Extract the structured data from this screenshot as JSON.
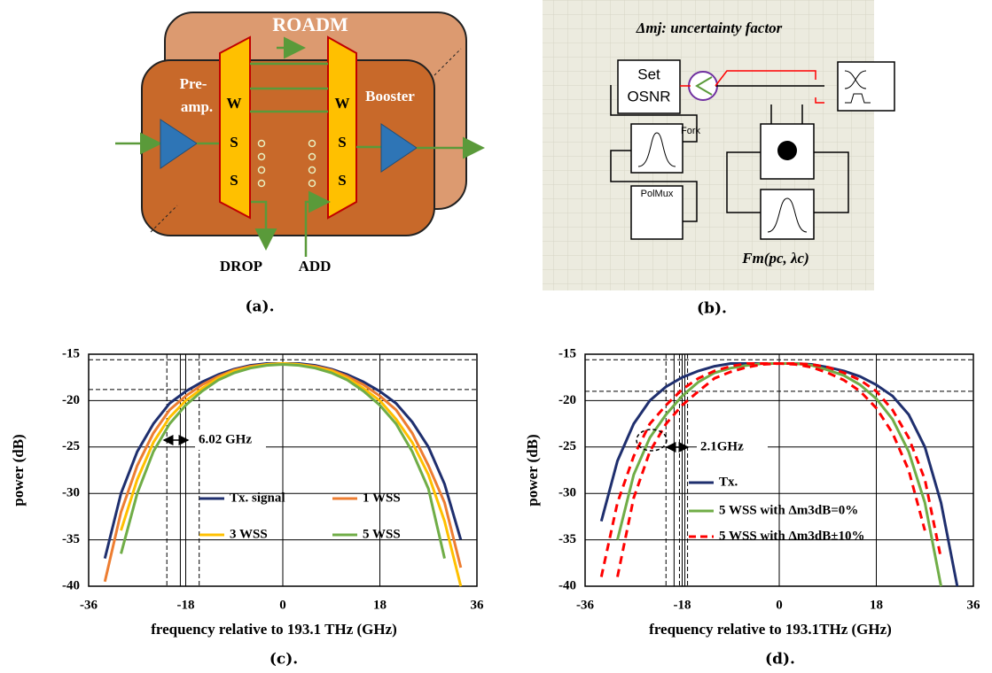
{
  "diagram_a": {
    "title": "ROADM",
    "preamp": [
      "Pre-",
      "amp."
    ],
    "booster": "Booster",
    "wss_left": [
      "W",
      "S",
      "S"
    ],
    "wss_right": [
      "W",
      "S",
      "S"
    ],
    "drop": "DROP",
    "add": "ADD",
    "caption": "(a)."
  },
  "diagram_b": {
    "title": "Δmj: uncertainty factor",
    "osnr": [
      "Set",
      "OSNR"
    ],
    "fork": "Fork",
    "polmux": "PolMux",
    "function": "Fm(pc, λc)",
    "caption": "(b)."
  },
  "chart_data": [
    {
      "type": "line",
      "caption": "(c).",
      "xlabel": "frequency relative to 193.1 THz (GHz)",
      "ylabel": "power (dB)",
      "annotation": "6.02 GHz",
      "xlim": [
        -36,
        36
      ],
      "xticks": [
        -36,
        -18,
        0,
        18,
        36
      ],
      "ylim": [
        -40,
        -15
      ],
      "yticks": [
        -15,
        -20,
        -25,
        -30,
        -35,
        -40
      ],
      "grid": true,
      "ref_hlines": [
        -15.6,
        -18.8
      ],
      "ref_vlines_dashed": [
        -21.5,
        -15.5
      ],
      "ref_vlines_solid": [
        -19,
        -18
      ],
      "x": [
        -36,
        -33,
        -30,
        -27,
        -24,
        -21,
        -18,
        -15,
        -12,
        -9,
        -6,
        -3,
        0,
        3,
        6,
        9,
        12,
        15,
        18,
        21,
        24,
        27,
        30,
        33,
        36
      ],
      "series": [
        {
          "name": "Tx. signal",
          "color": "#1f2f6e",
          "values": [
            null,
            -37,
            -30,
            -25.5,
            -22.5,
            -20.3,
            -19,
            -18,
            -17.2,
            -16.6,
            -16.2,
            -16,
            -16,
            -16,
            -16.2,
            -16.6,
            -17.2,
            -18,
            -19,
            -20.3,
            -22.3,
            -25,
            -29,
            -35,
            null
          ]
        },
        {
          "name": "1 WSS",
          "color": "#ed7d31",
          "values": [
            null,
            -39.5,
            -32,
            -27,
            -23.5,
            -21,
            -19.5,
            -18.3,
            -17.4,
            -16.7,
            -16.3,
            -16.1,
            -16,
            -16.1,
            -16.3,
            -16.7,
            -17.4,
            -18.3,
            -19.5,
            -21,
            -23.5,
            -27,
            -31,
            -38,
            null
          ]
        },
        {
          "name": "3 WSS",
          "color": "#ffc000",
          "values": [
            null,
            null,
            -34,
            -28.5,
            -24.5,
            -21.8,
            -20,
            -18.7,
            -17.6,
            -16.8,
            -16.4,
            -16.1,
            -16,
            -16.1,
            -16.4,
            -16.8,
            -17.6,
            -18.7,
            -20,
            -22,
            -24.5,
            -28,
            -33,
            -40,
            null
          ]
        },
        {
          "name": "5 WSS",
          "color": "#70ad47",
          "values": [
            null,
            null,
            -36.5,
            -30,
            -25.5,
            -22.5,
            -20.5,
            -19,
            -17.8,
            -17,
            -16.5,
            -16.2,
            -16.1,
            -16.2,
            -16.5,
            -17,
            -17.8,
            -19,
            -20.5,
            -22.5,
            -25.5,
            -29.5,
            -37,
            null,
            null
          ]
        }
      ]
    },
    {
      "type": "line",
      "caption": "(d).",
      "xlabel": "frequency relative to 193.1THz (GHz)",
      "ylabel": "power (dB)",
      "annotation": "2.1GHz",
      "xlim": [
        -36,
        36
      ],
      "xticks": [
        -36,
        -18,
        0,
        18,
        36
      ],
      "ylim": [
        -40,
        -15
      ],
      "yticks": [
        -15,
        -20,
        -25,
        -30,
        -35,
        -40
      ],
      "grid": true,
      "ref_hlines": [
        -15.6,
        -19
      ],
      "ref_vlines_dashed": [
        -21,
        -18.5,
        -17
      ],
      "ref_vlines_solid": [
        -19.5,
        -17.5
      ],
      "x": [
        -36,
        -33,
        -30,
        -27,
        -24,
        -21,
        -18,
        -15,
        -12,
        -9,
        -6,
        -3,
        0,
        3,
        6,
        9,
        12,
        15,
        18,
        21,
        24,
        27,
        30,
        33,
        36
      ],
      "series": [
        {
          "name": "Tx.",
          "color": "#1f2f6e",
          "values": [
            null,
            -33,
            -26.5,
            -22.5,
            -20,
            -18.5,
            -17.5,
            -16.8,
            -16.3,
            -16,
            -16,
            -16,
            -16,
            -16,
            -16.1,
            -16.4,
            -16.8,
            -17.4,
            -18.3,
            -19.5,
            -21.5,
            -25,
            -31,
            -40,
            null
          ]
        },
        {
          "name": "5 WSS with Δm3dB=0%",
          "color": "#70ad47",
          "values": [
            null,
            null,
            -35,
            -28,
            -24,
            -21.5,
            -19.5,
            -18,
            -17,
            -16.5,
            -16.2,
            -16,
            -16,
            -16,
            -16.2,
            -16.7,
            -17.3,
            -18.3,
            -19.8,
            -22,
            -25.5,
            -31,
            -40,
            null,
            null
          ]
        },
        {
          "name": "5 WSS with Δm3dB±10%",
          "color": "#ff0000",
          "dashed": true,
          "values": [
            null,
            -39,
            -31,
            -26,
            -22.5,
            -20.5,
            -18.8,
            -17.6,
            -16.8,
            -16.3,
            -16,
            -16,
            -16,
            -16,
            -16.1,
            -16.4,
            -17,
            -17.8,
            -19,
            -21,
            -24,
            -28.5,
            -37,
            null,
            null
          ],
          "values_inner": [
            null,
            null,
            -39,
            -30.5,
            -25.5,
            -22.5,
            -20.5,
            -19,
            -17.6,
            -16.9,
            -16.4,
            -16.1,
            -16,
            -16.1,
            -16.4,
            -17,
            -17.8,
            -19,
            -20.8,
            -23.5,
            -27.5,
            -34,
            null,
            null,
            null
          ]
        }
      ]
    }
  ]
}
